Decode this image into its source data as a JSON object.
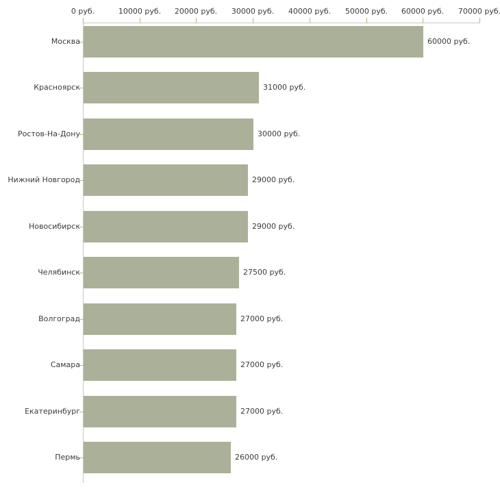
{
  "chart_data": {
    "type": "bar",
    "orientation": "horizontal",
    "title": "",
    "xlabel": "",
    "ylabel": "",
    "grid": false,
    "legend": null,
    "categories": [
      "Москва",
      "Красноярск",
      "Ростов-На-Дону",
      "Нижний Новгород",
      "Новосибирск",
      "Челябинск",
      "Волгоград",
      "Самара",
      "Екатеринбург",
      "Пермь"
    ],
    "values": [
      60000,
      31000,
      30000,
      29000,
      29000,
      27500,
      27000,
      27000,
      27000,
      26000
    ],
    "value_labels": [
      "60000 руб.",
      "31000 руб.",
      "30000 руб.",
      "29000 руб.",
      "29000 руб.",
      "27500 руб.",
      "27000 руб.",
      "27000 руб.",
      "27000 руб.",
      "26000 руб."
    ],
    "x_tick_values": [
      0,
      10000,
      20000,
      30000,
      40000,
      50000,
      60000,
      70000
    ],
    "x_tick_labels": [
      "0 руб.",
      "10000 руб.",
      "20000 руб.",
      "30000 руб.",
      "40000 руб.",
      "50000 руб.",
      "60000 руб.",
      "70000 руб."
    ],
    "xlim": [
      0,
      70000
    ],
    "colors": {
      "bar_fill": "#aab198",
      "axis_line": "#c6c6c6",
      "tick_mark": "#b3b67d",
      "text": "#3b3b3b",
      "background": "#ffffff"
    }
  }
}
